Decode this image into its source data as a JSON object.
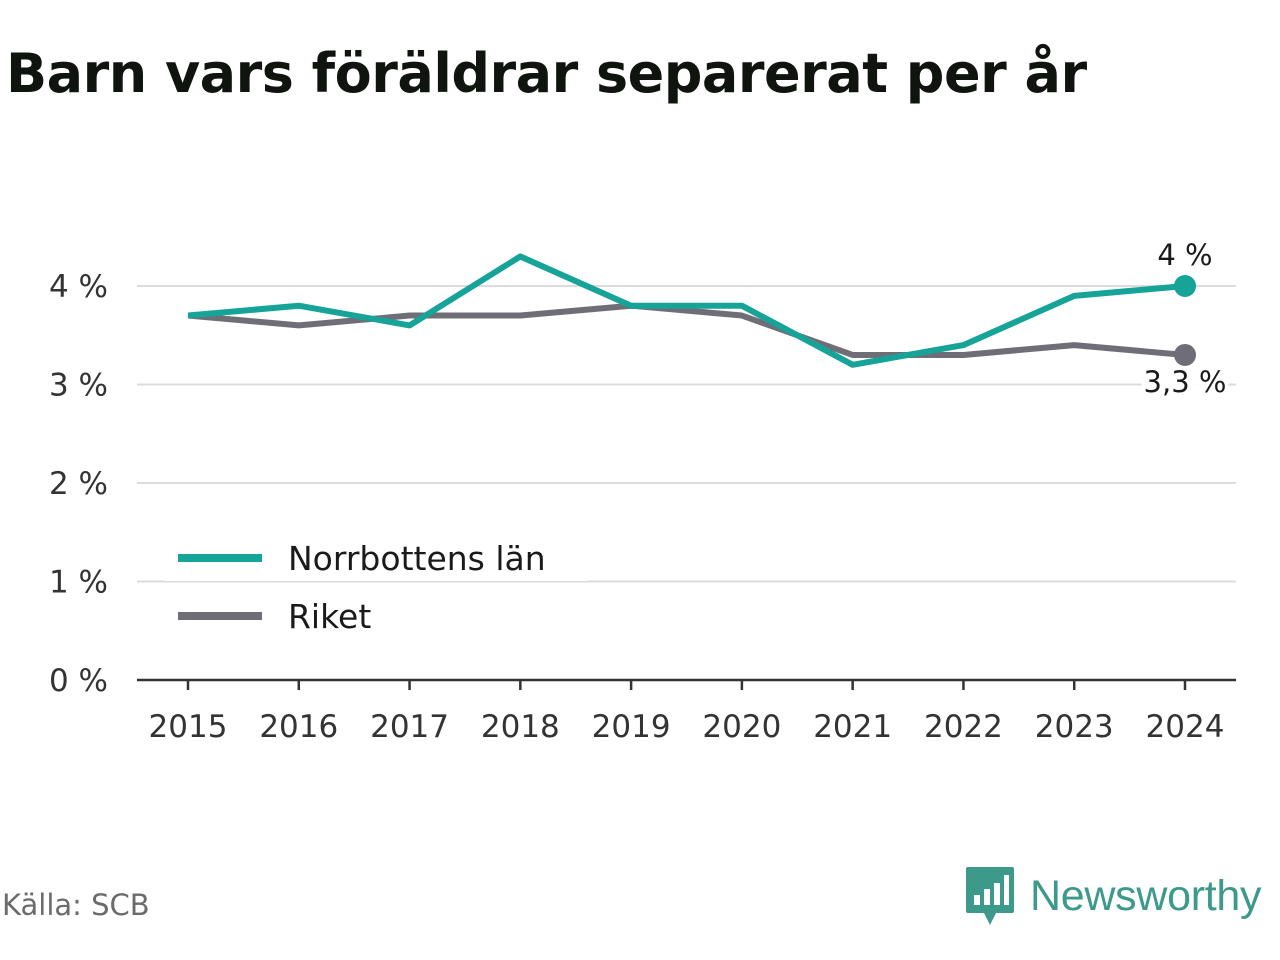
{
  "title": "Barn vars föräldrar separerat per år",
  "source": "Källa: SCB",
  "brand": {
    "name": "Newsworthy",
    "icon": "newsworthy-logo-icon",
    "color": "#3d9a8b"
  },
  "chart_data": {
    "type": "line",
    "title": "Barn vars föräldrar separerat per år",
    "x": [
      "2015",
      "2016",
      "2017",
      "2018",
      "2019",
      "2020",
      "2021",
      "2022",
      "2023",
      "2024"
    ],
    "ylim": [
      0,
      4.4
    ],
    "yticks": [
      {
        "value": 0,
        "label": "0 %"
      },
      {
        "value": 1,
        "label": "1 %"
      },
      {
        "value": 2,
        "label": "2 %"
      },
      {
        "value": 3,
        "label": "3 %"
      },
      {
        "value": 4,
        "label": "4 %"
      }
    ],
    "grid": true,
    "legend_position": "bottom-left",
    "series": [
      {
        "name": "Norrbottens län",
        "color": "#15a497",
        "values": [
          3.7,
          3.8,
          3.6,
          4.3,
          3.8,
          3.8,
          3.2,
          3.4,
          3.9,
          4.0
        ],
        "end_label": "4 %"
      },
      {
        "name": "Riket",
        "color": "#6f6e77",
        "values": [
          3.7,
          3.6,
          3.7,
          3.7,
          3.8,
          3.7,
          3.3,
          3.3,
          3.4,
          3.3
        ],
        "end_label": "3,3 %"
      }
    ]
  }
}
